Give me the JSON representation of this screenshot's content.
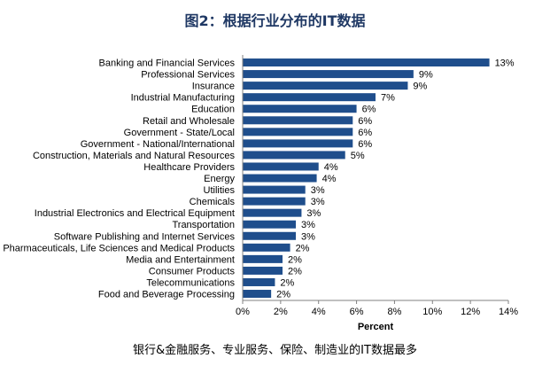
{
  "title": "图2：根据行业分布的IT数据",
  "caption": "银行&金融服务、专业服务、保险、制造业的IT数据最多",
  "chart_data": {
    "type": "bar",
    "orientation": "horizontal",
    "categories": [
      "Banking and Financial Services",
      "Professional Services",
      "Insurance",
      "Industrial Manufacturing",
      "Education",
      "Retail and Wholesale",
      "Government - State/Local",
      "Government - National/International",
      "Construction, Materials and Natural Resources",
      "Healthcare Providers",
      "Energy",
      "Utilities",
      "Chemicals",
      "Industrial Electronics and Electrical Equipment",
      "Transportation",
      "Software Publishing and Internet Services",
      "Pharmaceuticals, Life Sciences and Medical Products",
      "Media and Entertainment",
      "Consumer Products",
      "Telecommunications",
      "Food and Beverage Processing"
    ],
    "values": [
      13,
      9,
      8.7,
      7,
      6,
      5.8,
      5.8,
      5.8,
      5.4,
      4,
      3.9,
      3.3,
      3.3,
      3.1,
      2.8,
      2.8,
      2.5,
      2.1,
      2.1,
      1.7,
      1.5
    ],
    "value_labels": [
      "13%",
      "9%",
      "9%",
      "7%",
      "6%",
      "6%",
      "6%",
      "6%",
      "5%",
      "4%",
      "4%",
      "3%",
      "3%",
      "3%",
      "3%",
      "3%",
      "2%",
      "2%",
      "2%",
      "2%",
      "2%"
    ],
    "xlabel": "Percent",
    "xlim": [
      0,
      14
    ],
    "xticks": [
      "0%",
      "2%",
      "4%",
      "6%",
      "8%",
      "10%",
      "12%",
      "14%"
    ],
    "bar_color": "#1f4e8c",
    "grid": false
  }
}
